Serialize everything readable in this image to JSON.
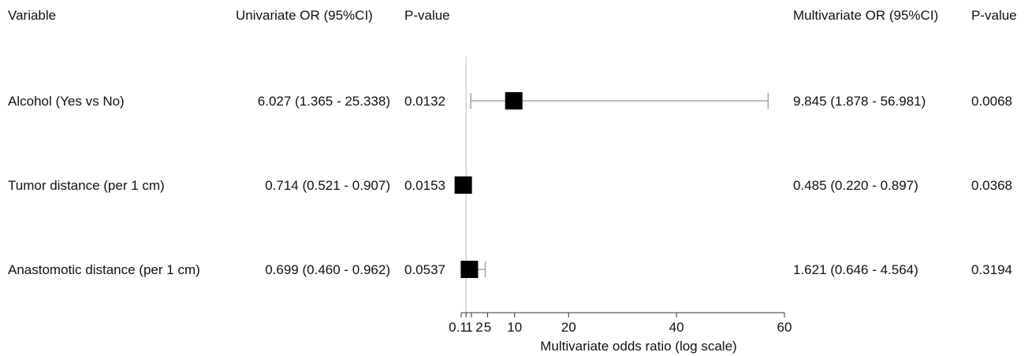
{
  "headers": {
    "variable": "Variable",
    "univariate_or": "Univariate OR (95%CI)",
    "univariate_p": "P-value",
    "multivariate_or": "Multivariate OR (95%CI)",
    "multivariate_p": "P-value"
  },
  "rows": [
    {
      "variable": "Alcohol (Yes vs No)",
      "univariate_or": "6.027 (1.365 - 25.338)",
      "univariate_p": "0.0132",
      "multivariate_or": "9.845 (1.878 - 56.981)",
      "multivariate_p": "0.0068"
    },
    {
      "variable": "Tumor distance (per 1 cm)",
      "univariate_or": "0.714 (0.521 - 0.907)",
      "univariate_p": "0.0153",
      "multivariate_or": "0.485 (0.220 - 0.897)",
      "multivariate_p": "0.0368"
    },
    {
      "variable": "Anastomotic distance (per 1 cm)",
      "univariate_or": "0.699 (0.460 - 0.962)",
      "univariate_p": "0.0537",
      "multivariate_or": "1.621 (0.646 - 4.564)",
      "multivariate_p": "0.3194"
    }
  ],
  "chart_data": {
    "type": "forest",
    "xlabel": "Multivariate odds ratio (log scale)",
    "x_ticks": [
      0.1,
      1,
      2,
      5,
      10,
      20,
      40,
      60
    ],
    "x_tick_labels": [
      "0.1",
      "1",
      "2",
      "5",
      "10",
      "20",
      "40",
      "60"
    ],
    "xlim": [
      0.1,
      60
    ],
    "reference_line": 1,
    "series": [
      {
        "label": "Alcohol (Yes vs No)",
        "or": 9.845,
        "lower": 1.878,
        "upper": 56.981
      },
      {
        "label": "Tumor distance (per 1 cm)",
        "or": 0.485,
        "lower": 0.22,
        "upper": 0.897
      },
      {
        "label": "Anastomotic distance (per 1 cm)",
        "or": 1.621,
        "lower": 0.646,
        "upper": 4.564
      }
    ],
    "colors": {
      "marker": "#000000",
      "ci_line": "#a6a6a6",
      "reference": "#c8c8c8",
      "axis": "#333333"
    }
  }
}
